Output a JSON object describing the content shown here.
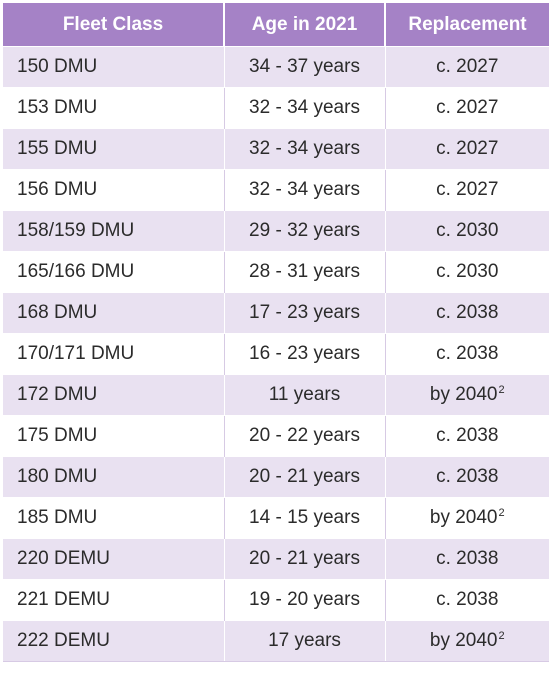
{
  "table": {
    "headers": [
      "Fleet Class",
      "Age in 2021",
      "Replacement"
    ],
    "rows": [
      {
        "fleet_class": "150 DMU",
        "age": "34 - 37 years",
        "replacement": "c. 2027",
        "footnote": ""
      },
      {
        "fleet_class": "153 DMU",
        "age": "32 - 34 years",
        "replacement": "c. 2027",
        "footnote": ""
      },
      {
        "fleet_class": "155 DMU",
        "age": "32 - 34 years",
        "replacement": "c. 2027",
        "footnote": ""
      },
      {
        "fleet_class": "156 DMU",
        "age": "32 - 34 years",
        "replacement": "c. 2027",
        "footnote": ""
      },
      {
        "fleet_class": "158/159 DMU",
        "age": "29 - 32 years",
        "replacement": "c. 2030",
        "footnote": ""
      },
      {
        "fleet_class": "165/166 DMU",
        "age": "28 - 31 years",
        "replacement": "c. 2030",
        "footnote": ""
      },
      {
        "fleet_class": "168 DMU",
        "age": "17 - 23 years",
        "replacement": "c. 2038",
        "footnote": ""
      },
      {
        "fleet_class": "170/171 DMU",
        "age": "16 - 23 years",
        "replacement": "c. 2038",
        "footnote": ""
      },
      {
        "fleet_class": "172 DMU",
        "age": "11 years",
        "replacement": "by 2040",
        "footnote": "2"
      },
      {
        "fleet_class": "175 DMU",
        "age": "20 - 22 years",
        "replacement": "c. 2038",
        "footnote": ""
      },
      {
        "fleet_class": "180 DMU",
        "age": "20 - 21 years",
        "replacement": "c. 2038",
        "footnote": ""
      },
      {
        "fleet_class": "185 DMU",
        "age": "14 - 15 years",
        "replacement": "by 2040",
        "footnote": "2"
      },
      {
        "fleet_class": "220 DEMU",
        "age": "20 - 21 years",
        "replacement": "c. 2038",
        "footnote": ""
      },
      {
        "fleet_class": "221 DEMU",
        "age": "19 - 20 years",
        "replacement": "c. 2038",
        "footnote": ""
      },
      {
        "fleet_class": "222 DEMU",
        "age": "17 years",
        "replacement": "by 2040",
        "footnote": "2"
      }
    ]
  },
  "colors": {
    "header_bg": "#a582c6",
    "header_text": "#ffffff",
    "band_bg": "#e9e1f1",
    "row_bg": "#ffffff",
    "text": "#2b2b2b"
  }
}
